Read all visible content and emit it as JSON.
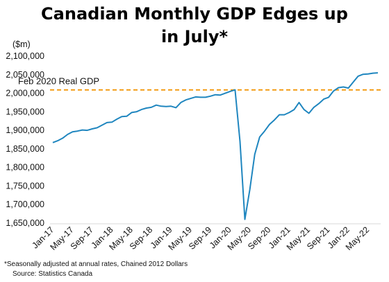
{
  "chart_data": {
    "type": "line",
    "title_line1": "Canadian Monthly GDP Edges up",
    "title_line2": "in July*",
    "ylabel": "($m)",
    "ylim": [
      1650000,
      2100000
    ],
    "y_ticks": [
      1650000,
      1700000,
      1750000,
      1800000,
      1850000,
      1900000,
      1950000,
      2000000,
      2050000,
      2100000
    ],
    "y_tick_labels": [
      "1,650,000",
      "1,700,000",
      "1,750,000",
      "1,800,000",
      "1,850,000",
      "1,900,000",
      "1,950,000",
      "2,000,000",
      "2,050,000",
      "2,100,000"
    ],
    "x_tick_labels": [
      "Jan-17",
      "May-17",
      "Sep-17",
      "Jan-18",
      "May-18",
      "Sep-18",
      "Jan-19",
      "May-19",
      "Sep-19",
      "Jan-20",
      "May-20",
      "Sep-20",
      "Jan-21",
      "May-21",
      "Sep-21",
      "Jan-22",
      "May-22"
    ],
    "reference_line": {
      "label": "Feb 2020 Real GDP",
      "value": 2009000,
      "color": "#f39c12"
    },
    "series": [
      {
        "color": "#1f86bf",
        "start": "Jan-17",
        "values": [
          1867000,
          1872000,
          1879000,
          1889000,
          1896000,
          1898000,
          1901000,
          1900000,
          1904000,
          1907000,
          1914000,
          1921000,
          1922000,
          1930000,
          1937000,
          1938000,
          1948000,
          1950000,
          1956000,
          1960000,
          1962000,
          1968000,
          1965000,
          1964000,
          1965000,
          1961000,
          1975000,
          1982000,
          1986000,
          1990000,
          1989000,
          1989000,
          1992000,
          1996000,
          1995000,
          2000000,
          2005000,
          2009000,
          1870000,
          1660000,
          1740000,
          1835000,
          1882000,
          1898000,
          1916000,
          1928000,
          1942000,
          1942000,
          1948000,
          1956000,
          1975000,
          1956000,
          1946000,
          1962000,
          1972000,
          1984000,
          1989000,
          2006000,
          2015000,
          2017000,
          2014000,
          2030000,
          2046000,
          2051000,
          2052000,
          2054000,
          2055000
        ]
      }
    ],
    "footnote_line1": "*Seasonally adjusted at annual rates, Chained 2012 Dollars",
    "footnote_line2": "Source: Statistics Canada"
  }
}
